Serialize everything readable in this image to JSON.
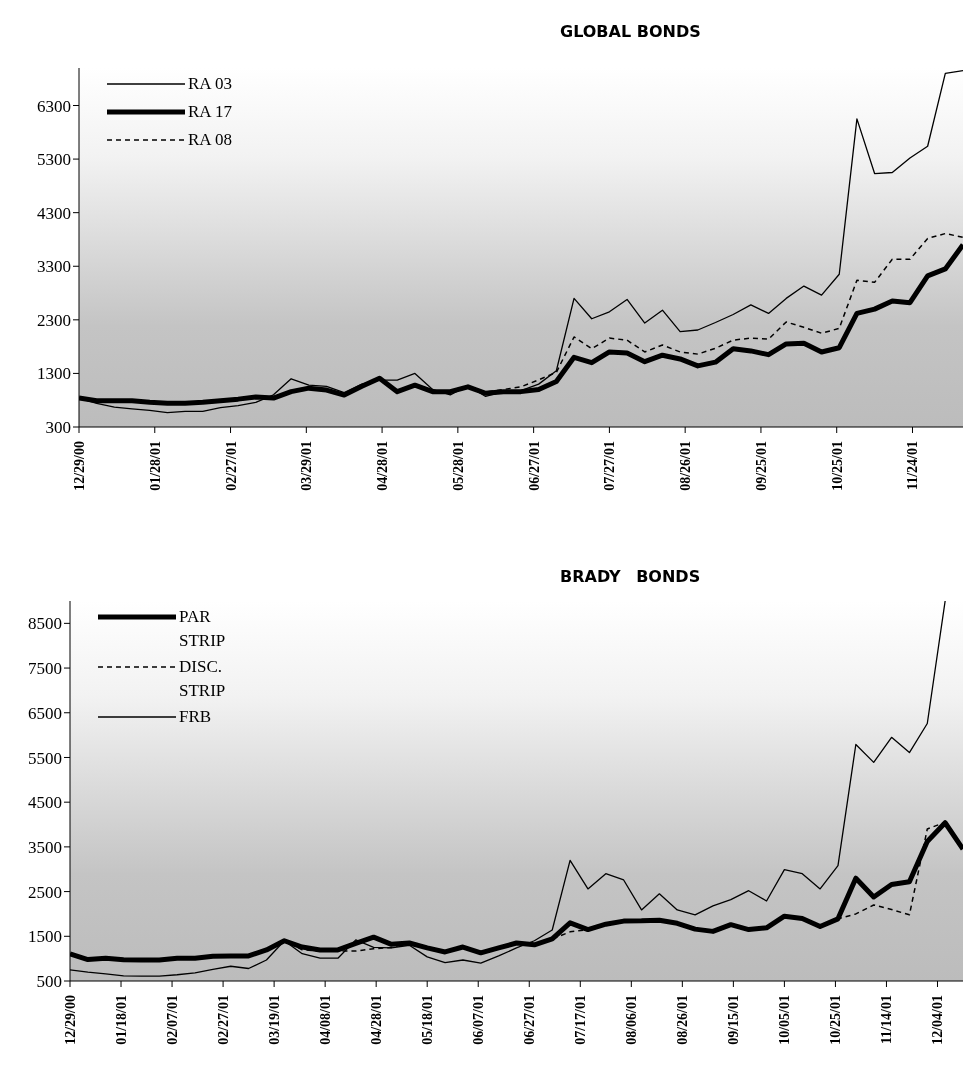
{
  "chart_data": [
    {
      "type": "line",
      "title": "GLOBAL BONDS",
      "legend": "top left",
      "x": [
        "2000-12-29",
        "2001-01-05",
        "2001-01-12",
        "2001-01-19",
        "2001-01-26",
        "2001-02-02",
        "2001-02-09",
        "2001-02-16",
        "2001-02-23",
        "2001-03-02",
        "2001-03-09",
        "2001-03-16",
        "2001-03-23",
        "2001-03-30",
        "2001-04-06",
        "2001-04-13",
        "2001-04-20",
        "2001-04-27",
        "2001-05-04",
        "2001-05-11",
        "2001-05-18",
        "2001-05-25",
        "2001-06-01",
        "2001-06-08",
        "2001-06-15",
        "2001-06-22",
        "2001-06-29",
        "2001-07-06",
        "2001-07-13",
        "2001-07-20",
        "2001-07-27",
        "2001-08-03",
        "2001-08-10",
        "2001-08-17",
        "2001-08-24",
        "2001-08-31",
        "2001-09-07",
        "2001-09-14",
        "2001-09-21",
        "2001-09-28",
        "2001-10-05",
        "2001-10-12",
        "2001-10-19",
        "2001-10-26",
        "2001-11-02",
        "2001-11-09",
        "2001-11-16",
        "2001-11-23",
        "2001-11-30",
        "2001-12-07",
        "2001-12-14"
      ],
      "xlim": [
        "2000-12-29",
        "2001-12-14"
      ],
      "xticks": [
        {
          "value": "2000-12-29",
          "label": "12/29/00"
        },
        {
          "value": "2001-01-28",
          "label": "01/28/01"
        },
        {
          "value": "2001-02-27",
          "label": "02/27/01"
        },
        {
          "value": "2001-03-29",
          "label": "03/29/01"
        },
        {
          "value": "2001-04-28",
          "label": "04/28/01"
        },
        {
          "value": "2001-05-28",
          "label": "05/28/01"
        },
        {
          "value": "2001-06-27",
          "label": "06/27/01"
        },
        {
          "value": "2001-07-27",
          "label": "07/27/01"
        },
        {
          "value": "2001-08-26",
          "label": "08/26/01"
        },
        {
          "value": "2001-09-25",
          "label": "09/25/01"
        },
        {
          "value": "2001-10-25",
          "label": "10/25/01"
        },
        {
          "value": "2001-11-24",
          "label": "11/24/01"
        }
      ],
      "ylim": [
        300,
        7000
      ],
      "yticks": [
        300,
        1300,
        2300,
        3300,
        4300,
        5300,
        6300
      ],
      "series": [
        {
          "name": "RA 03",
          "color": "#000000",
          "line_style": "solid",
          "values": [
            840,
            740,
            670,
            640,
            610,
            570,
            590,
            590,
            660,
            700,
            760,
            900,
            1200,
            1080,
            1060,
            940,
            1100,
            1175,
            1175,
            1300,
            1000,
            900,
            1070,
            870,
            960,
            980,
            1100,
            1350,
            2700,
            2320,
            2450,
            2680,
            2240,
            2480,
            2080,
            2110,
            2250,
            2400,
            2580,
            2420,
            2700,
            2930,
            2760,
            3150,
            6050,
            5030,
            5050,
            5320,
            5540,
            6900,
            6950
          ]
        },
        {
          "name": "RA 17",
          "color": "#000000",
          "line_style": "solid",
          "values": [
            840,
            790,
            790,
            790,
            760,
            745,
            745,
            760,
            790,
            820,
            860,
            840,
            960,
            1025,
            990,
            895,
            1060,
            1210,
            960,
            1080,
            960,
            960,
            1050,
            930,
            960,
            960,
            1000,
            1150,
            1600,
            1500,
            1700,
            1680,
            1520,
            1640,
            1570,
            1440,
            1510,
            1760,
            1720,
            1650,
            1850,
            1865,
            1700,
            1780,
            2420,
            2500,
            2650,
            2620,
            3120,
            3250,
            3700
          ]
        },
        {
          "name": "RA 08",
          "color": "#000000",
          "line_style": "dashed",
          "values": [
            850,
            800,
            800,
            800,
            770,
            755,
            755,
            770,
            800,
            830,
            870,
            850,
            970,
            1035,
            1000,
            905,
            1070,
            1200,
            970,
            1090,
            970,
            970,
            1060,
            950,
            1000,
            1050,
            1180,
            1320,
            1980,
            1760,
            1960,
            1920,
            1700,
            1830,
            1700,
            1660,
            1770,
            1920,
            1960,
            1940,
            2260,
            2160,
            2050,
            2140,
            3040,
            3000,
            3430,
            3430,
            3820,
            3910,
            3840
          ]
        }
      ]
    },
    {
      "type": "line",
      "title": "BRADY BONDS",
      "legend": "top left",
      "x": [
        "2000-12-29",
        "2001-01-05",
        "2001-01-12",
        "2001-01-19",
        "2001-01-26",
        "2001-02-02",
        "2001-02-09",
        "2001-02-16",
        "2001-02-23",
        "2001-03-02",
        "2001-03-09",
        "2001-03-16",
        "2001-03-23",
        "2001-03-30",
        "2001-04-06",
        "2001-04-13",
        "2001-04-20",
        "2001-04-27",
        "2001-05-04",
        "2001-05-11",
        "2001-05-18",
        "2001-05-25",
        "2001-06-01",
        "2001-06-08",
        "2001-06-15",
        "2001-06-22",
        "2001-06-29",
        "2001-07-06",
        "2001-07-13",
        "2001-07-20",
        "2001-07-27",
        "2001-08-03",
        "2001-08-10",
        "2001-08-17",
        "2001-08-24",
        "2001-08-31",
        "2001-09-07",
        "2001-09-14",
        "2001-09-21",
        "2001-09-28",
        "2001-10-05",
        "2001-10-12",
        "2001-10-19",
        "2001-10-26",
        "2001-11-02",
        "2001-11-09",
        "2001-11-16",
        "2001-11-23",
        "2001-11-30",
        "2001-12-07",
        "2001-12-14"
      ],
      "xlim": [
        "2000-12-29",
        "2001-12-14"
      ],
      "xticks": [
        {
          "value": "2000-12-29",
          "label": "12/29/00"
        },
        {
          "value": "2001-01-18",
          "label": "01/18/01"
        },
        {
          "value": "2001-02-07",
          "label": "02/07/01"
        },
        {
          "value": "2001-02-27",
          "label": "02/27/01"
        },
        {
          "value": "2001-03-19",
          "label": "03/19/01"
        },
        {
          "value": "2001-04-08",
          "label": "04/08/01"
        },
        {
          "value": "2001-04-28",
          "label": "04/28/01"
        },
        {
          "value": "2001-05-18",
          "label": "05/18/01"
        },
        {
          "value": "2001-06-07",
          "label": "06/07/01"
        },
        {
          "value": "2001-06-27",
          "label": "06/27/01"
        },
        {
          "value": "2001-07-17",
          "label": "07/17/01"
        },
        {
          "value": "2001-08-06",
          "label": "08/06/01"
        },
        {
          "value": "2001-08-26",
          "label": "08/26/01"
        },
        {
          "value": "2001-09-15",
          "label": "09/15/01"
        },
        {
          "value": "2001-10-05",
          "label": "10/05/01"
        },
        {
          "value": "2001-10-25",
          "label": "10/25/01"
        },
        {
          "value": "2001-11-14",
          "label": "11/14/01"
        },
        {
          "value": "2001-12-04",
          "label": "12/04/01"
        }
      ],
      "ylim": [
        500,
        9000
      ],
      "yticks": [
        500,
        1500,
        2500,
        3500,
        4500,
        5500,
        6500,
        7500,
        8500
      ],
      "series": [
        {
          "name": "PAR STRIP",
          "color": "#000000",
          "line_style": "solid",
          "values": [
            1105,
            980,
            1010,
            975,
            970,
            970,
            1010,
            1010,
            1055,
            1060,
            1060,
            1195,
            1400,
            1260,
            1195,
            1195,
            1340,
            1480,
            1320,
            1350,
            1240,
            1150,
            1260,
            1130,
            1240,
            1350,
            1310,
            1440,
            1800,
            1650,
            1770,
            1840,
            1845,
            1860,
            1790,
            1660,
            1610,
            1760,
            1650,
            1690,
            1950,
            1900,
            1720,
            1890,
            2800,
            2380,
            2660,
            2720,
            3620,
            4040,
            3450
          ]
        },
        {
          "name": "DISC. STRIP",
          "color": "#000000",
          "line_style": "dashed",
          "values": [
            1105,
            980,
            1010,
            975,
            970,
            970,
            1010,
            1010,
            1055,
            1060,
            1060,
            1195,
            1400,
            1200,
            1170,
            1170,
            1170,
            1220,
            1250,
            1350,
            1240,
            1150,
            1260,
            1130,
            1240,
            1350,
            1310,
            1440,
            1600,
            1650,
            1770,
            1840,
            1845,
            1860,
            1790,
            1660,
            1610,
            1760,
            1650,
            1690,
            1950,
            1900,
            1720,
            1890,
            2000,
            2200,
            2100,
            1980,
            3900,
            4050,
            3450
          ]
        },
        {
          "name": "FRB",
          "color": "#000000",
          "line_style": "solid",
          "values": [
            750,
            700,
            660,
            615,
            610,
            610,
            640,
            680,
            760,
            830,
            780,
            970,
            1400,
            1110,
            1010,
            1010,
            1420,
            1250,
            1240,
            1300,
            1040,
            910,
            970,
            900,
            1060,
            1240,
            1400,
            1640,
            3200,
            2560,
            2900,
            2760,
            2090,
            2450,
            2090,
            1980,
            2180,
            2320,
            2520,
            2290,
            2990,
            2900,
            2560,
            3080,
            5790,
            5390,
            5950,
            5610,
            6260,
            9000,
            null
          ]
        }
      ]
    }
  ]
}
